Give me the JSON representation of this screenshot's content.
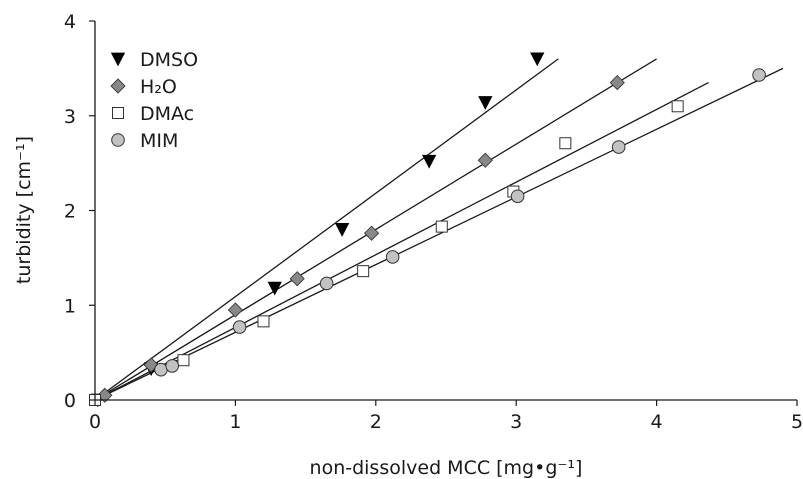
{
  "chart_data": {
    "type": "scatter",
    "xlabel": "non-dissolved MCC [mg•g⁻¹]",
    "ylabel": "turbidity [cm⁻¹]",
    "xlim": [
      0,
      5
    ],
    "ylim": [
      0,
      4
    ],
    "x_ticks": [
      "0",
      "1",
      "2",
      "3",
      "4",
      "5"
    ],
    "y_ticks": [
      "0",
      "1",
      "2",
      "3",
      "4"
    ],
    "grid": false,
    "legend_position": "top-left",
    "series": [
      {
        "name": "DMSO",
        "marker": "triangle-down",
        "fill": "#000000",
        "points": [
          [
            0.02,
            0.0
          ],
          [
            0.4,
            0.33
          ],
          [
            1.28,
            1.18
          ],
          [
            1.76,
            1.8
          ],
          [
            2.38,
            2.52
          ],
          [
            2.78,
            3.14
          ],
          [
            3.15,
            3.6
          ]
        ],
        "fit": {
          "x": [
            0.0,
            3.3
          ],
          "y": [
            0.0,
            3.6
          ]
        }
      },
      {
        "name": "H₂O",
        "marker": "diamond",
        "fill": "#888888",
        "points": [
          [
            0.07,
            0.05
          ],
          [
            0.4,
            0.37
          ],
          [
            1.0,
            0.95
          ],
          [
            1.44,
            1.28
          ],
          [
            1.97,
            1.76
          ],
          [
            2.78,
            2.53
          ],
          [
            3.72,
            3.35
          ]
        ],
        "fit": {
          "x": [
            0.0,
            4.0
          ],
          "y": [
            0.0,
            3.6
          ]
        }
      },
      {
        "name": "DMAc",
        "marker": "square",
        "fill": "#ffffff",
        "points": [
          [
            0.0,
            0.0
          ],
          [
            0.63,
            0.42
          ],
          [
            1.2,
            0.83
          ],
          [
            1.91,
            1.36
          ],
          [
            2.47,
            1.83
          ],
          [
            2.98,
            2.2
          ],
          [
            3.35,
            2.71
          ],
          [
            4.15,
            3.1
          ]
        ],
        "fit": {
          "x": [
            0.0,
            4.37
          ],
          "y": [
            0.0,
            3.35
          ]
        }
      },
      {
        "name": "MIM",
        "marker": "circle",
        "fill": "#c2c2c2",
        "points": [
          [
            0.47,
            0.32
          ],
          [
            0.55,
            0.36
          ],
          [
            1.03,
            0.77
          ],
          [
            1.65,
            1.23
          ],
          [
            2.12,
            1.51
          ],
          [
            3.01,
            2.15
          ],
          [
            3.73,
            2.67
          ],
          [
            4.73,
            3.43
          ]
        ],
        "fit": {
          "x": [
            0.0,
            4.9
          ],
          "y": [
            0.0,
            3.5
          ]
        }
      }
    ]
  }
}
